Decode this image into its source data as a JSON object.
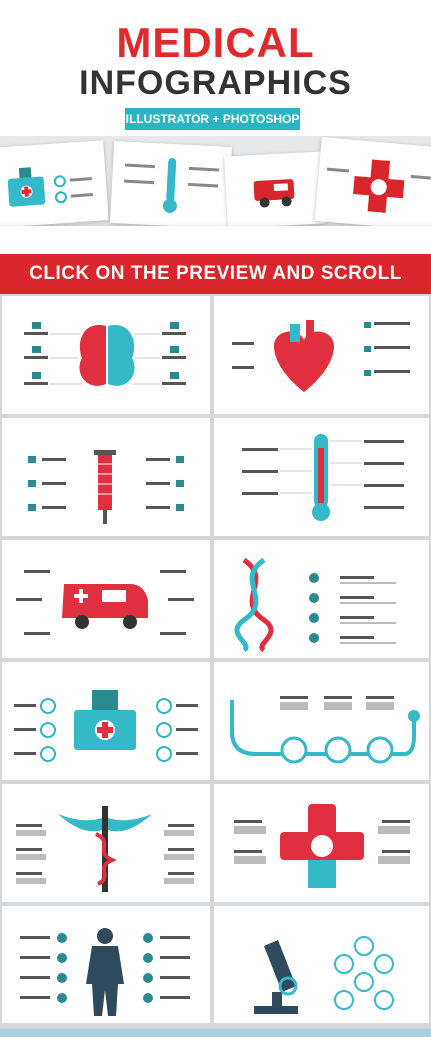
{
  "header": {
    "title_line1": "MEDICAL",
    "title_line2": "INFOGRAPHICS",
    "badge": "ILLUSTRATOR + PHOTOSHOP"
  },
  "banner": {
    "text": "CLICK ON THE PREVIEW AND SCROLL DOWN"
  },
  "colors": {
    "red": "#e12a2e",
    "teal": "#2bb5c2",
    "dark": "#333333"
  },
  "slides": [
    {
      "icon": "brain-icon"
    },
    {
      "icon": "heart-icon"
    },
    {
      "icon": "syringe-icon"
    },
    {
      "icon": "thermometer-icon"
    },
    {
      "icon": "ambulance-icon"
    },
    {
      "icon": "dna-icon"
    },
    {
      "icon": "first-aid-kit-icon"
    },
    {
      "icon": "stethoscope-icon"
    },
    {
      "icon": "caduceus-icon"
    },
    {
      "icon": "medical-cross-icon"
    },
    {
      "icon": "human-body-icon"
    },
    {
      "icon": "microscope-icon"
    }
  ]
}
